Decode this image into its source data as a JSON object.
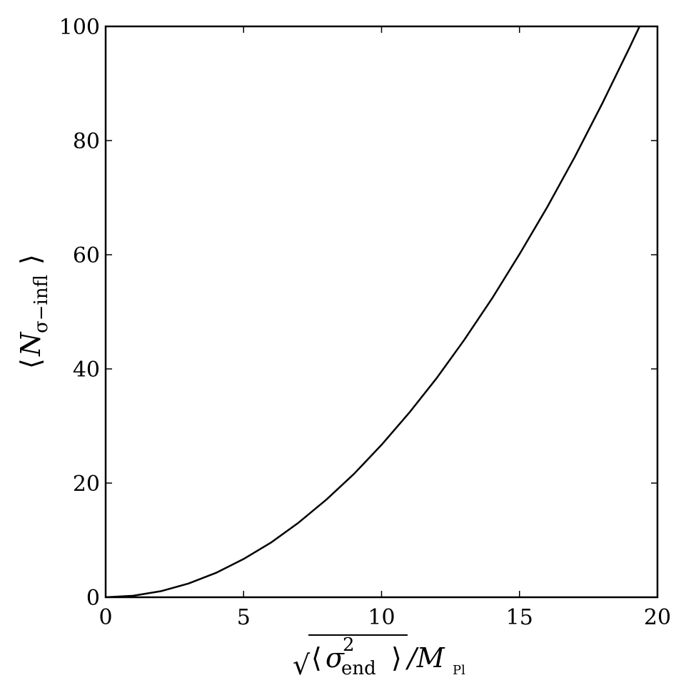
{
  "chart_data": {
    "type": "line",
    "xlabel": {
      "sqrt_symbol": "√",
      "open_bracket": "⟨",
      "sigma": "σ",
      "superscript": "2",
      "subscript": "end",
      "close_bracket": "⟩",
      "slash_m": "/M",
      "m_subscript": "Pl"
    },
    "ylabel": {
      "open_bracket": "⟨",
      "n": "N",
      "subscript": "σ−infl",
      "close_bracket": "⟩"
    },
    "xlim": [
      0,
      20
    ],
    "ylim": [
      0,
      100
    ],
    "x_ticks": [
      0,
      5,
      10,
      15,
      20
    ],
    "x_tick_labels": [
      "0",
      "5",
      "10",
      "15",
      "20"
    ],
    "y_ticks": [
      0,
      20,
      40,
      60,
      80,
      100
    ],
    "y_tick_labels": [
      "0",
      "20",
      "40",
      "60",
      "80",
      "100"
    ],
    "grid": false,
    "series": [
      {
        "color": "#000000",
        "x": [
          0,
          1,
          2,
          3,
          4,
          5,
          6,
          7,
          8,
          9,
          10,
          11,
          12,
          13,
          14,
          15,
          16,
          17,
          18,
          19,
          19.45
        ],
        "y": [
          0,
          0.27,
          1.06,
          2.4,
          4.27,
          6.7,
          9.6,
          13.1,
          17.1,
          21.6,
          26.7,
          32.3,
          38.4,
          45.1,
          52.3,
          60.1,
          68.3,
          77.1,
          86.5,
          96.4,
          101
        ]
      }
    ]
  }
}
